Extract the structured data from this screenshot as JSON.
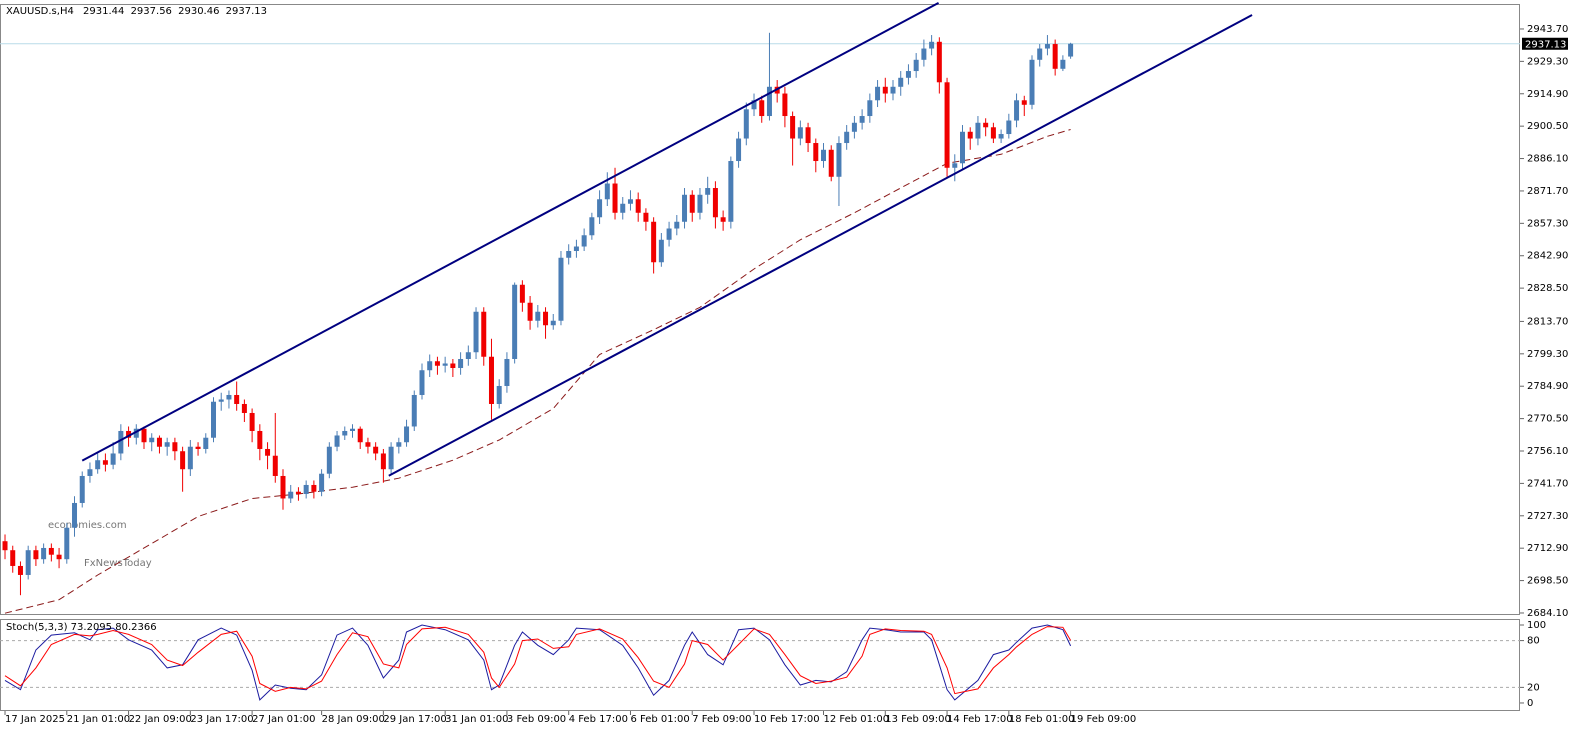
{
  "chart_data": [
    {
      "type": "candlestick",
      "title": "XAUUSD.s,H4",
      "open": [
        2716,
        2712,
        2705,
        2701,
        2712,
        2708,
        2713,
        2710,
        2708,
        2722,
        2733,
        2745,
        2748,
        2752,
        2750,
        2755,
        2765,
        2762,
        2766,
        2760,
        2762,
        2758,
        2760,
        2756,
        2748,
        2758,
        2757,
        2762,
        2778,
        2779,
        2781,
        2777,
        2773,
        2765,
        2757,
        2754,
        2745,
        2735,
        2738,
        2737,
        2741,
        2738,
        2746,
        2758,
        2763,
        2765,
        2766,
        2760,
        2758,
        2755,
        2748,
        2758,
        2760,
        2767,
        2781,
        2792,
        2796,
        2794,
        2795,
        2793,
        2797,
        2800,
        2818,
        2798,
        2777,
        2785,
        2797,
        2830,
        2822,
        2814,
        2818,
        2812,
        2814,
        2842,
        2845,
        2847,
        2852,
        2860,
        2868,
        2875,
        2862,
        2866,
        2868,
        2862,
        2858,
        2840,
        2850,
        2855,
        2858,
        2870,
        2862,
        2870,
        2873,
        2860,
        2858,
        2885,
        2895,
        2908,
        2912,
        2905,
        2918,
        2915,
        2905,
        2895,
        2900,
        2893,
        2885,
        2890,
        2878,
        2893,
        2898,
        2902,
        2905,
        2912,
        2918,
        2915,
        2918,
        2922,
        2925,
        2930,
        2935,
        2938,
        2920,
        2882,
        2884,
        2898,
        2895,
        2902,
        2900,
        2895,
        2897,
        2903,
        2912,
        2910,
        2930,
        2935,
        2937,
        2926,
        2931.44
      ],
      "high": [
        2719,
        2714,
        2707,
        2714,
        2714,
        2715,
        2715,
        2713,
        2724,
        2736,
        2747,
        2751,
        2755,
        2755,
        2760,
        2768,
        2767,
        2768,
        2767,
        2764,
        2763,
        2762,
        2762,
        2758,
        2761,
        2760,
        2764,
        2780,
        2782,
        2783,
        2787,
        2779,
        2775,
        2768,
        2760,
        2773,
        2748,
        2741,
        2740,
        2743,
        2743,
        2748,
        2760,
        2765,
        2767,
        2768,
        2767,
        2762,
        2760,
        2757,
        2760,
        2762,
        2770,
        2783,
        2795,
        2799,
        2798,
        2798,
        2797,
        2800,
        2803,
        2820,
        2820,
        2806,
        2788,
        2800,
        2831,
        2832,
        2825,
        2821,
        2820,
        2817,
        2845,
        2848,
        2850,
        2855,
        2862,
        2872,
        2880,
        2882,
        2869,
        2872,
        2871,
        2864,
        2860,
        2853,
        2858,
        2861,
        2873,
        2872,
        2873,
        2878,
        2876,
        2863,
        2887,
        2898,
        2911,
        2915,
        2914,
        2942,
        2921,
        2918,
        2907,
        2903,
        2902,
        2895,
        2893,
        2892,
        2896,
        2901,
        2905,
        2908,
        2915,
        2921,
        2922,
        2921,
        2925,
        2928,
        2933,
        2939,
        2941,
        2940,
        2922,
        2888,
        2901,
        2900,
        2905,
        2904,
        2902,
        2899,
        2906,
        2915,
        2914,
        2932,
        2937,
        2941,
        2939,
        2932,
        2937.56
      ],
      "low": [
        2708,
        2702,
        2692,
        2699,
        2705,
        2706,
        2707,
        2704,
        2706,
        2718,
        2731,
        2742,
        2746,
        2747,
        2748,
        2752,
        2758,
        2759,
        2757,
        2756,
        2755,
        2754,
        2752,
        2738,
        2745,
        2754,
        2755,
        2760,
        2774,
        2775,
        2774,
        2769,
        2760,
        2752,
        2748,
        2742,
        2730,
        2733,
        2734,
        2735,
        2735,
        2736,
        2744,
        2756,
        2761,
        2762,
        2757,
        2755,
        2752,
        2742,
        2746,
        2755,
        2758,
        2765,
        2779,
        2789,
        2790,
        2791,
        2789,
        2790,
        2794,
        2797,
        2794,
        2770,
        2775,
        2782,
        2795,
        2818,
        2810,
        2811,
        2806,
        2810,
        2812,
        2839,
        2842,
        2845,
        2850,
        2857,
        2865,
        2859,
        2859,
        2863,
        2858,
        2854,
        2835,
        2838,
        2847,
        2852,
        2855,
        2858,
        2859,
        2866,
        2855,
        2854,
        2855,
        2882,
        2892,
        2905,
        2902,
        2903,
        2911,
        2900,
        2883,
        2892,
        2889,
        2880,
        2882,
        2876,
        2865,
        2890,
        2895,
        2899,
        2902,
        2909,
        2911,
        2912,
        2914,
        2919,
        2922,
        2927,
        2932,
        2915,
        2878,
        2876,
        2881,
        2890,
        2892,
        2896,
        2893,
        2893,
        2895,
        2900,
        2905,
        2908,
        2927,
        2932,
        2923,
        2925,
        2930.46
      ],
      "close": [
        2712,
        2705,
        2701,
        2712,
        2708,
        2713,
        2710,
        2708,
        2722,
        2733,
        2745,
        2748,
        2752,
        2750,
        2755,
        2765,
        2762,
        2766,
        2760,
        2762,
        2758,
        2760,
        2756,
        2748,
        2758,
        2757,
        2762,
        2778,
        2779,
        2781,
        2777,
        2773,
        2765,
        2757,
        2754,
        2745,
        2735,
        2738,
        2737,
        2741,
        2738,
        2746,
        2758,
        2763,
        2765,
        2766,
        2760,
        2758,
        2755,
        2748,
        2758,
        2760,
        2767,
        2781,
        2792,
        2796,
        2794,
        2795,
        2793,
        2797,
        2800,
        2818,
        2798,
        2777,
        2785,
        2797,
        2830,
        2822,
        2814,
        2818,
        2812,
        2814,
        2842,
        2845,
        2847,
        2852,
        2860,
        2868,
        2875,
        2862,
        2866,
        2868,
        2862,
        2858,
        2840,
        2850,
        2855,
        2858,
        2870,
        2862,
        2870,
        2873,
        2860,
        2858,
        2885,
        2895,
        2908,
        2912,
        2905,
        2918,
        2915,
        2905,
        2895,
        2900,
        2893,
        2885,
        2890,
        2878,
        2893,
        2898,
        2902,
        2905,
        2912,
        2918,
        2915,
        2918,
        2922,
        2925,
        2930,
        2935,
        2938,
        2920,
        2882,
        2884,
        2898,
        2895,
        2902,
        2900,
        2895,
        2897,
        2903,
        2912,
        2910,
        2930,
        2935,
        2937,
        2926,
        2930,
        2937.13
      ],
      "colors": {
        "up": "#4a7db5",
        "down": "#f00000"
      },
      "xlim": [
        -0.65,
        196.2
      ],
      "ylim": [
        2683.2,
        2954.8
      ],
      "yticks": [
        {
          "value": 2943.7,
          "label": "2943.70"
        },
        {
          "value": 2929.3,
          "label": "2929.30"
        },
        {
          "value": 2914.9,
          "label": "2914.90"
        },
        {
          "value": 2900.5,
          "label": "2900.50"
        },
        {
          "value": 2886.1,
          "label": "2886.10"
        },
        {
          "value": 2871.7,
          "label": "2871.70"
        },
        {
          "value": 2857.3,
          "label": "2857.30"
        },
        {
          "value": 2842.9,
          "label": "2842.90"
        },
        {
          "value": 2828.5,
          "label": "2828.50"
        },
        {
          "value": 2813.7,
          "label": "2813.70"
        },
        {
          "value": 2799.3,
          "label": "2799.30"
        },
        {
          "value": 2784.9,
          "label": "2784.90"
        },
        {
          "value": 2770.5,
          "label": "2770.50"
        },
        {
          "value": 2756.1,
          "label": "2756.10"
        },
        {
          "value": 2741.7,
          "label": "2741.70"
        },
        {
          "value": 2727.3,
          "label": "2727.30"
        },
        {
          "value": 2712.9,
          "label": "2712.90"
        },
        {
          "value": 2698.5,
          "label": "2698.50"
        },
        {
          "value": 2684.1,
          "label": "2684.10"
        }
      ],
      "xticks": [
        {
          "value": 0,
          "label": "17 Jan 2025"
        },
        {
          "value": 8,
          "label": "21 Jan 01:00"
        },
        {
          "value": 16,
          "label": "22 Jan 09:00"
        },
        {
          "value": 24,
          "label": "23 Jan 17:00"
        },
        {
          "value": 32,
          "label": "27 Jan 01:00"
        },
        {
          "value": 41,
          "label": "28 Jan 09:00"
        },
        {
          "value": 49,
          "label": "29 Jan 17:00"
        },
        {
          "value": 57,
          "label": "31 Jan 01:00"
        },
        {
          "value": 65,
          "label": "3 Feb 09:00"
        },
        {
          "value": 73,
          "label": "4 Feb 17:00"
        },
        {
          "value": 81,
          "label": "6 Feb 01:00"
        },
        {
          "value": 89,
          "label": "7 Feb 09:00"
        },
        {
          "value": 97,
          "label": "10 Feb 17:00"
        },
        {
          "value": 106,
          "label": "12 Feb 01:00"
        },
        {
          "value": 114,
          "label": "13 Feb 09:00"
        },
        {
          "value": 122,
          "label": "14 Feb 17:00"
        },
        {
          "value": 130,
          "label": "18 Feb 01:00"
        },
        {
          "value": 138,
          "label": "19 Feb 09:00"
        }
      ],
      "moving_average": {
        "color": "#8b1a1a",
        "x": [
          0,
          7,
          12,
          19,
          25,
          32,
          38,
          45,
          51,
          58,
          64,
          71,
          77,
          84,
          90,
          97,
          103,
          110,
          116,
          122,
          129,
          135,
          138
        ],
        "values": [
          2684,
          2690,
          2701,
          2715,
          2727,
          2735,
          2737,
          2740,
          2744,
          2752,
          2761,
          2775,
          2799,
          2810,
          2820,
          2837,
          2850,
          2862,
          2873,
          2884,
          2888,
          2896,
          2899
        ]
      },
      "trendlines": [
        {
          "color": "#000080",
          "x": [
            10,
            120.9
          ],
          "values": [
            2751.8,
            2955.3
          ]
        },
        {
          "color": "#000080",
          "x": [
            49.7,
            161.5
          ],
          "values": [
            2745.1,
            2949.9
          ]
        }
      ],
      "price_line_color": "#b9dbe8",
      "watermarks": [
        {
          "text": "economies.com",
          "color": "#f2a15f"
        },
        {
          "text": "FxNewsToday",
          "color": "#9a9a9a"
        }
      ]
    },
    {
      "type": "line",
      "title": "Stoch(5,3,3)",
      "x": [
        0,
        2,
        4,
        6,
        9,
        11,
        12,
        14,
        16,
        19,
        21,
        23,
        25,
        28,
        30,
        32,
        33,
        35,
        37,
        39,
        41,
        43,
        45,
        47,
        49,
        51,
        52,
        54,
        57,
        60,
        62,
        63,
        64,
        66,
        67,
        69,
        71,
        73,
        74,
        77,
        80,
        82,
        84,
        86,
        88,
        89,
        91,
        93,
        95,
        97,
        99,
        101,
        103,
        105,
        107,
        109,
        111,
        112,
        114,
        116,
        119,
        120,
        122,
        123,
        126,
        128,
        130,
        131,
        133,
        135,
        137,
        138
      ],
      "series": [
        {
          "color": "#1c1ca0",
          "values": [
            29,
            17,
            68,
            87,
            90,
            81,
            94,
            96,
            81,
            68,
            45,
            49,
            81,
            96,
            87,
            42,
            4,
            23,
            19,
            17,
            36,
            87,
            96,
            74,
            32,
            55,
            91,
            100,
            94,
            81,
            55,
            17,
            23,
            74,
            91,
            74,
            62,
            81,
            96,
            94,
            74,
            45,
            10,
            29,
            74,
            91,
            62,
            49,
            94,
            96,
            81,
            49,
            23,
            29,
            27,
            40,
            81,
            96,
            94,
            91,
            91,
            81,
            17,
            4,
            29,
            62,
            68,
            78,
            96,
            100,
            94,
            73.2095
          ]
        },
        {
          "color": "#ff0000",
          "values": [
            35,
            22,
            45,
            75,
            88,
            86,
            88,
            93,
            88,
            75,
            55,
            48,
            65,
            88,
            92,
            60,
            25,
            15,
            20,
            18,
            28,
            62,
            90,
            85,
            50,
            45,
            75,
            95,
            97,
            88,
            65,
            32,
            20,
            50,
            80,
            82,
            70,
            72,
            88,
            95,
            82,
            58,
            28,
            20,
            50,
            80,
            75,
            55,
            75,
            95,
            88,
            62,
            35,
            25,
            28,
            33,
            60,
            88,
            95,
            93,
            92,
            88,
            45,
            12,
            18,
            45,
            62,
            72,
            88,
            98,
            97,
            80.2366
          ]
        }
      ],
      "ylim": [
        -10.3,
        107.7
      ],
      "yticks": [
        0,
        20,
        80,
        100
      ],
      "levels": [
        20,
        80
      ]
    }
  ]
}
